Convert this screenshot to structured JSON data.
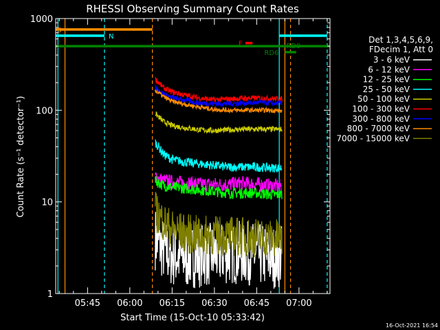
{
  "chart_data": {
    "type": "line",
    "title": "RHESSI Observing Summary Count Rates",
    "xlabel": "Start Time (15-Oct-10 05:33:42)",
    "ylabel": "Count Rate (s⁻¹ detector⁻¹)",
    "ylog": true,
    "xlim": [
      "05:33:42",
      "07:11:00"
    ],
    "ylim": [
      1,
      1000
    ],
    "x_ticks": [
      "05:45",
      "06:00",
      "06:15",
      "06:30",
      "06:45",
      "07:00"
    ],
    "y_ticks": [
      "1",
      "10",
      "100",
      "1000"
    ],
    "timestamp": "16-Oct-2021 16:54",
    "legend_header": [
      "Det 1,3,4,5,6,9,",
      "FDecim 1, Att 0"
    ],
    "colors": {
      "background": "#000000",
      "axes": "#ffffff",
      "day_night_lines": "#00ffff",
      "saa_lines": "#ff8c00"
    },
    "flags": [
      {
        "label": "S",
        "color": "#ff8c00",
        "start": "05:33:42",
        "end": "06:08:00",
        "y": 760
      },
      {
        "label": "N",
        "color": "#00ffff",
        "start": "05:33:42",
        "end": "05:51:00",
        "y": 650
      },
      {
        "label": "N",
        "color": "#00ffff",
        "start": "06:53:00",
        "end": "07:10:00",
        "y": 650
      },
      {
        "label": "F",
        "color": "#ff0000",
        "start": "06:41:00",
        "end": "06:43:30",
        "y": 540
      },
      {
        "label": "RD9",
        "color": "#008000",
        "start": "05:33:42",
        "end": "07:11:00",
        "y": 500
      },
      {
        "label": "RD6",
        "color": "#008000",
        "start": "06:55:00",
        "end": "06:59:00",
        "y": 430
      }
    ],
    "vertical_lines": [
      {
        "t": "05:34:30",
        "color": "#00ffff",
        "style": "solid"
      },
      {
        "t": "05:37:00",
        "color": "#ff8c00",
        "style": "solid"
      },
      {
        "t": "05:51:00",
        "color": "#00ffff",
        "style": "dashed"
      },
      {
        "t": "06:08:00",
        "color": "#ff8c00",
        "style": "dashed"
      },
      {
        "t": "06:53:00",
        "color": "#00ffff",
        "style": "solid"
      },
      {
        "t": "06:55:00",
        "color": "#ff8c00",
        "style": "solid"
      },
      {
        "t": "06:57:00",
        "color": "#ff8c00",
        "style": "dashed"
      },
      {
        "t": "07:10:00",
        "color": "#00ffff",
        "style": "dashed"
      }
    ],
    "x": [
      "06:09:00",
      "06:12:00",
      "06:15:00",
      "06:20:00",
      "06:25:00",
      "06:30:00",
      "06:35:00",
      "06:40:00",
      "06:45:00",
      "06:50:00",
      "06:54:00"
    ],
    "series": [
      {
        "name": "3 - 6 keV",
        "color": "#ffffff",
        "values": [
          4.0,
          3.0,
          2.6,
          2.5,
          2.6,
          2.7,
          2.8,
          2.8,
          2.7,
          2.5,
          2.6
        ]
      },
      {
        "name": "6 - 12 keV",
        "color": "#ff00ff",
        "values": [
          19,
          17,
          16.5,
          16,
          15.5,
          15.5,
          15.5,
          16,
          15.5,
          15,
          15
        ]
      },
      {
        "name": "12 - 25 keV",
        "color": "#00ff00",
        "values": [
          17,
          15,
          14.5,
          14,
          13.5,
          13,
          12.5,
          12.5,
          12.5,
          12,
          12
        ]
      },
      {
        "name": "25 - 50 keV",
        "color": "#00ffff",
        "values": [
          45,
          33,
          29,
          27,
          26,
          25,
          24,
          24,
          24,
          23.5,
          23.5
        ]
      },
      {
        "name": "50 - 100 keV",
        "color": "#cccc00",
        "values": [
          92,
          75,
          68,
          64,
          61,
          60,
          61,
          62,
          62,
          62,
          62
        ]
      },
      {
        "name": "100 - 300 keV",
        "color": "#ff0000",
        "values": [
          220,
          175,
          158,
          145,
          135,
          130,
          132,
          135,
          136,
          134,
          132
        ]
      },
      {
        "name": "300 - 800 keV",
        "color": "#0000ff",
        "values": [
          180,
          150,
          137,
          128,
          120,
          118,
          118,
          120,
          121,
          120,
          118
        ]
      },
      {
        "name": "800 - 7000 keV",
        "color": "#ff8c00",
        "values": [
          165,
          140,
          125,
          115,
          108,
          102,
          100,
          100,
          100,
          100,
          98
        ]
      },
      {
        "name": "7000 - 15000 keV",
        "color": "#808000",
        "values": [
          8.0,
          6.0,
          5.0,
          4.5,
          4.3,
          4.3,
          4.2,
          4.2,
          4.1,
          4.0,
          4.0
        ]
      }
    ]
  }
}
